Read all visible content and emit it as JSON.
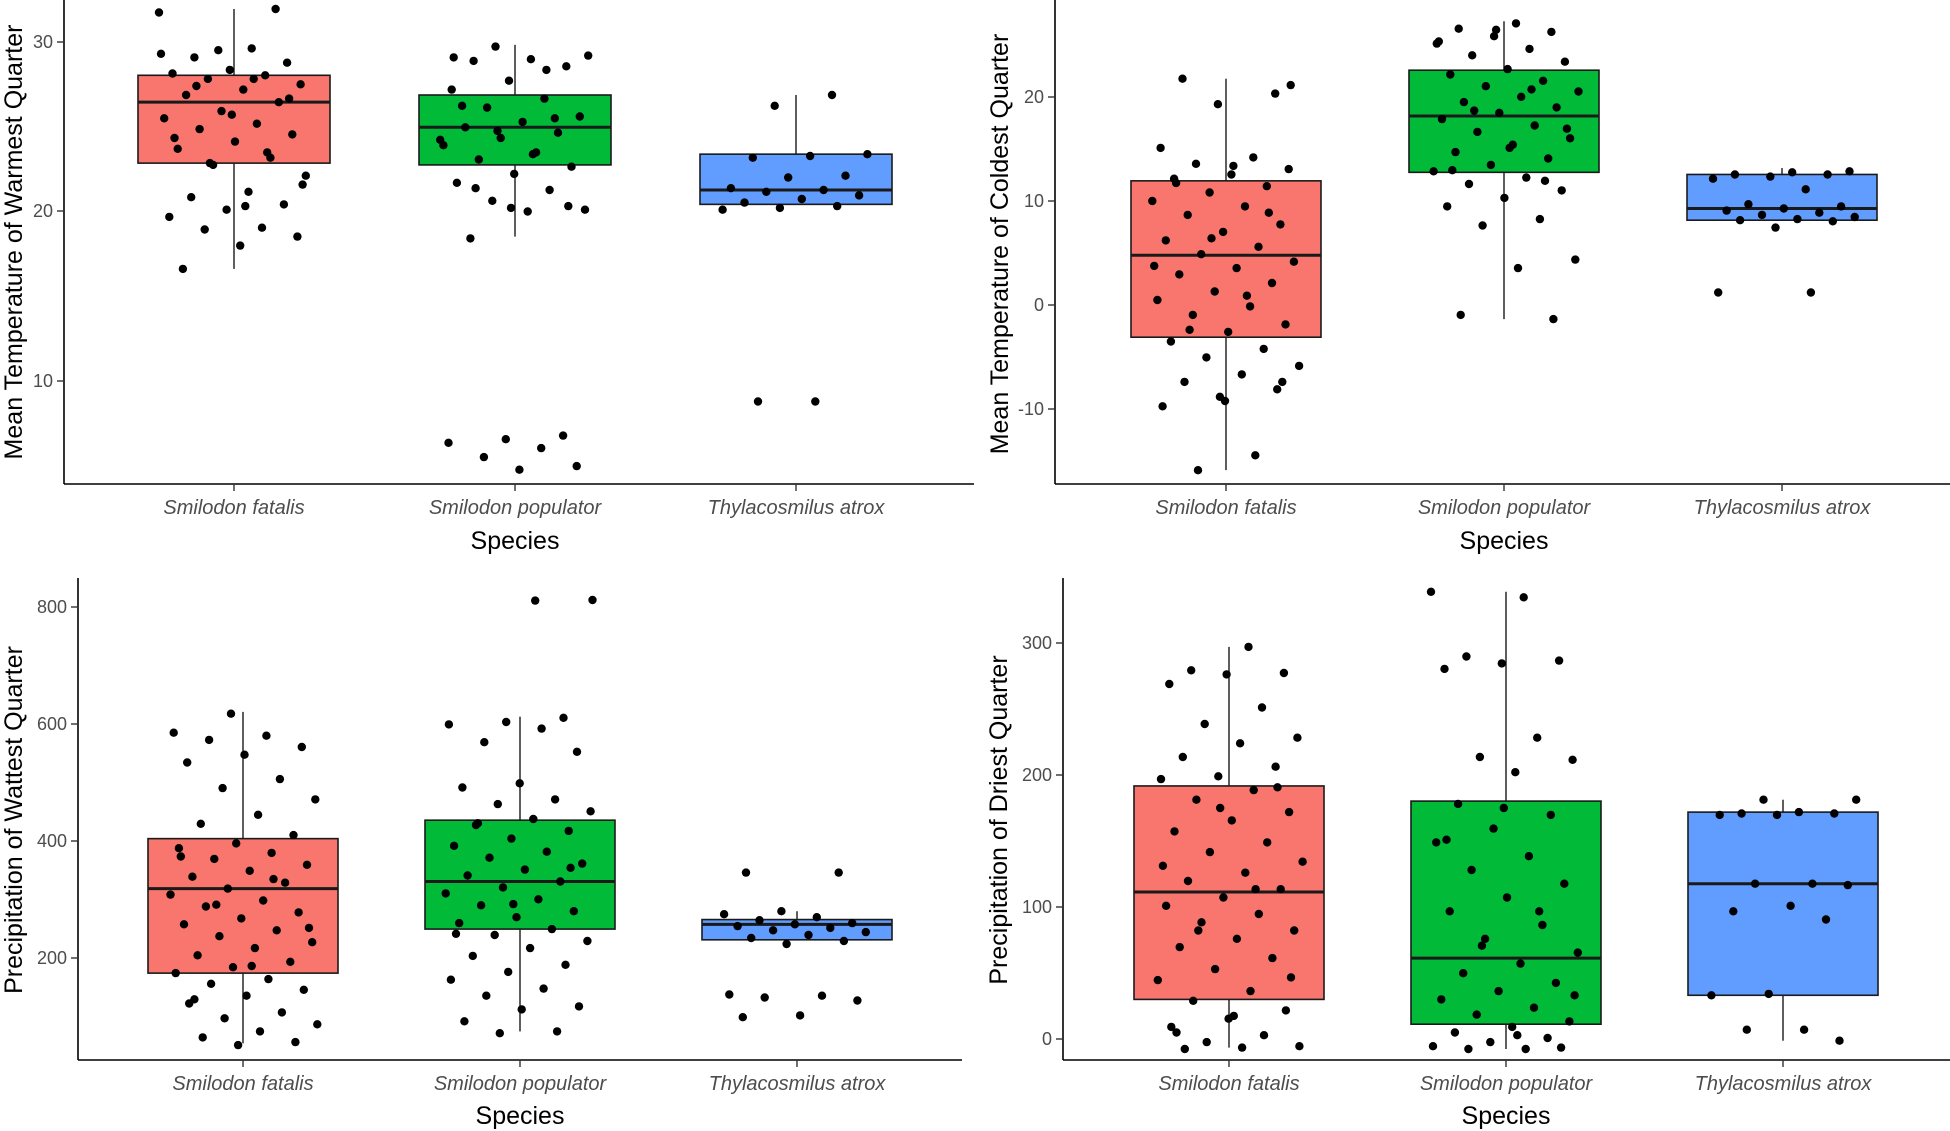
{
  "colors": {
    "Smilodon fatalis": "#F8766D",
    "Smilodon populator": "#00BA38",
    "Thylacosmilus atrox": "#619CFF"
  },
  "chart_data": [
    {
      "id": "warmest",
      "type": "box",
      "ylabel": "Mean Temperature of Warmest Quarter",
      "xlabel": "Species",
      "ylim": [
        4.5,
        31.5
      ],
      "yticks": [
        10,
        20,
        30
      ],
      "categories": [
        "Smilodon fatalis",
        "Smilodon populator",
        "Thylacosmilus atrox"
      ],
      "boxes": [
        {
          "q1": 22.4,
          "median": 25.8,
          "q3": 27.3,
          "lower": 16.5,
          "upper": 31.0
        },
        {
          "q1": 22.3,
          "median": 24.4,
          "q3": 26.2,
          "lower": 18.3,
          "upper": 29.0
        },
        {
          "q1": 20.1,
          "median": 20.9,
          "q3": 22.9,
          "lower": 20.1,
          "upper": 26.2
        }
      ],
      "points": [
        [
          30.8,
          28.8,
          28.3,
          28.0,
          27.6,
          27.4,
          27.3,
          27.1,
          26.8,
          26.5,
          26.2,
          25.8,
          25.3,
          24.9,
          24.6,
          24.3,
          24.0,
          23.6,
          23.2,
          22.7,
          22.3,
          21.7,
          20.8,
          20.5,
          20.1,
          19.8,
          19.4,
          18.8,
          18.7,
          18.3,
          17.8,
          16.5,
          31.0,
          28.7,
          28.5,
          27.1,
          26.7,
          26.0,
          25.1,
          23.8,
          23.0,
          22.4,
          21.2,
          20.0
        ],
        [
          28.9,
          28.4,
          28.2,
          28.1,
          27.8,
          27.0,
          26.5,
          26.0,
          25.5,
          25.0,
          24.7,
          24.4,
          24.1,
          23.8,
          23.4,
          23.0,
          22.6,
          22.2,
          21.8,
          21.3,
          20.9,
          20.3,
          19.8,
          19.7,
          18.2,
          7.2,
          7.0,
          6.8,
          6.5,
          6.0,
          5.5,
          5.3,
          25.6,
          24.9,
          24.2,
          23.7,
          22.9,
          21.0,
          20.0,
          19.9,
          28.3,
          27.6
        ],
        [
          26.2,
          25.6,
          22.9,
          22.8,
          22.7,
          21.7,
          21.6,
          21.0,
          20.9,
          20.8,
          20.6,
          20.4,
          20.2,
          20.0,
          19.9,
          19.8,
          9.1,
          9.1
        ]
      ]
    },
    {
      "id": "coldest",
      "type": "box",
      "ylabel": "Mean Temperature of Coldest Quarter",
      "xlabel": "Species",
      "ylim": [
        -16.5,
        29
      ],
      "yticks": [
        -10,
        0,
        10,
        20
      ],
      "categories": [
        "Smilodon fatalis",
        "Smilodon populator",
        "Thylacosmilus atrox"
      ],
      "boxes": [
        {
          "q1": -2.7,
          "median": 5.0,
          "q3": 12.0,
          "lower": -15.2,
          "upper": 21.6
        },
        {
          "q1": 12.8,
          "median": 18.1,
          "q3": 22.4,
          "lower": -1.0,
          "upper": 27.0
        },
        {
          "q1": 8.3,
          "median": 9.4,
          "q3": 12.6,
          "lower": 8.3,
          "upper": 13.2
        }
      ],
      "points": [
        [
          21.6,
          20.2,
          19.2,
          15.1,
          14.2,
          13.6,
          13.1,
          12.6,
          12.2,
          11.5,
          10.9,
          10.1,
          9.6,
          8.8,
          7.9,
          7.2,
          6.4,
          5.8,
          5.1,
          4.4,
          3.8,
          3.2,
          2.4,
          1.6,
          0.8,
          0.2,
          -0.6,
          -1.5,
          -2.2,
          -3.1,
          -3.8,
          -4.6,
          -5.4,
          -6.2,
          -6.9,
          -7.6,
          -8.3,
          -9.2,
          -13.8,
          -15.2,
          21.0,
          13.4,
          11.8,
          9.0,
          6.6,
          4.0,
          1.2,
          -2.0,
          -6.9,
          -8.7
        ],
        [
          26.8,
          26.3,
          26.0,
          25.6,
          24.9,
          24.4,
          23.8,
          23.2,
          22.5,
          22.0,
          21.4,
          20.9,
          20.4,
          19.9,
          19.4,
          18.9,
          18.4,
          17.8,
          17.2,
          16.6,
          16.0,
          15.4,
          14.7,
          14.1,
          13.5,
          12.9,
          12.3,
          11.7,
          11.1,
          10.4,
          9.6,
          8.4,
          7.8,
          4.6,
          3.8,
          -0.6,
          -1.0,
          26.2,
          25.1,
          20.6,
          18.6,
          16.9,
          15.1,
          13.0,
          12.0
        ],
        [
          12.9,
          12.8,
          12.6,
          12.6,
          12.4,
          12.2,
          11.2,
          9.8,
          9.6,
          9.4,
          9.2,
          9.0,
          8.8,
          8.6,
          8.4,
          8.3,
          8.2,
          7.6,
          1.5,
          1.5
        ]
      ]
    },
    {
      "id": "wettest",
      "type": "box",
      "ylabel": "Precipitation of Wattest Quarter",
      "xlabel": "Species",
      "ylim": [
        40,
        850
      ],
      "yticks": [
        200,
        400,
        600,
        800
      ],
      "categories": [
        "Smilodon fatalis",
        "Smilodon populator",
        "Thylacosmilus atrox"
      ],
      "boxes": [
        {
          "q1": 186,
          "median": 328,
          "q3": 412,
          "lower": 68,
          "upper": 625
        },
        {
          "q1": 260,
          "median": 340,
          "q3": 443,
          "lower": 88,
          "upper": 617
        },
        {
          "q1": 242,
          "median": 268,
          "q3": 276,
          "lower": 242,
          "upper": 290
        }
      ],
      "points": [
        [
          622,
          590,
          585,
          578,
          566,
          553,
          540,
          512,
          497,
          478,
          452,
          437,
          418,
          404,
          396,
          388,
          378,
          368,
          358,
          348,
          338,
          328,
          318,
          308,
          298,
          288,
          278,
          268,
          258,
          248,
          238,
          228,
          216,
          205,
          196,
          186,
          176,
          168,
          158,
          148,
          135,
          120,
          110,
          100,
          88,
          78,
          70,
          65,
          382,
          344,
          301,
          262,
          198,
          142
        ],
        [
          615,
          608,
          604,
          597,
          574,
          558,
          505,
          498,
          478,
          470,
          458,
          445,
          435,
          425,
          412,
          400,
          390,
          380,
          370,
          360,
          350,
          340,
          330,
          320,
          310,
          300,
          290,
          280,
          270,
          260,
          250,
          240,
          228,
          215,
          200,
          188,
          175,
          160,
          148,
          130,
          125,
          105,
          88,
          85,
          813,
          812,
          438,
          363,
          302,
          252
        ],
        [
          355,
          355,
          290,
          285,
          280,
          275,
          270,
          268,
          265,
          262,
          258,
          255,
          250,
          245,
          240,
          235,
          150,
          148,
          145,
          140,
          115,
          112
        ]
      ]
    },
    {
      "id": "driest",
      "type": "box",
      "ylabel": "Precipitation of Driest Quarter",
      "xlabel": "Species",
      "ylim": [
        -8,
        342
      ],
      "yticks": [
        0,
        100,
        200,
        300
      ],
      "categories": [
        "Smilodon fatalis",
        "Smilodon populator",
        "Thylacosmilus atrox"
      ],
      "boxes": [
        {
          "q1": 36,
          "median": 114,
          "q3": 191,
          "lower": 1,
          "upper": 292
        },
        {
          "q1": 18,
          "median": 66,
          "q3": 180,
          "lower": 0,
          "upper": 332
        },
        {
          "q1": 39,
          "median": 120,
          "q3": 172,
          "lower": 6,
          "upper": 181
        }
      ],
      "points": [
        [
          292,
          275,
          273,
          272,
          265,
          248,
          236,
          226,
          222,
          212,
          205,
          198,
          196,
          188,
          181,
          172,
          166,
          158,
          150,
          143,
          136,
          128,
          122,
          116,
          110,
          104,
          98,
          92,
          86,
          80,
          74,
          66,
          58,
          50,
          42,
          35,
          28,
          22,
          16,
          10,
          5,
          2,
          1,
          0,
          190,
          175,
          133,
          116,
          86,
          52,
          24,
          12
        ],
        [
          332,
          328,
          285,
          282,
          280,
          276,
          226,
          212,
          210,
          201,
          178,
          170,
          160,
          150,
          140,
          130,
          120,
          110,
          100,
          90,
          80,
          70,
          62,
          55,
          48,
          42,
          36,
          30,
          25,
          20,
          16,
          12,
          8,
          5,
          2,
          0,
          0,
          1,
          175,
          152,
          100,
          75,
          39,
          10
        ],
        [
          181,
          181,
          172,
          171,
          171,
          170,
          170,
          120,
          120,
          119,
          104,
          100,
          94,
          40,
          39,
          14,
          14,
          6
        ]
      ]
    }
  ],
  "panels": [
    {
      "ylabel": "Mean Temperature of Warmest Quarter",
      "xlabel": "Species",
      "yticks": [
        "10",
        "20",
        "30"
      ],
      "categories": [
        "Smilodon fatalis",
        "Smilodon populator",
        "Thylacosmilus atrox"
      ]
    },
    {
      "ylabel": "Mean Temperature of Coldest Quarter",
      "xlabel": "Species",
      "yticks": [
        "-10",
        "0",
        "10",
        "20"
      ],
      "categories": [
        "Smilodon fatalis",
        "Smilodon populator",
        "Thylacosmilus atrox"
      ]
    },
    {
      "ylabel": "Precipitation of Wattest Quarter",
      "xlabel": "Species",
      "yticks": [
        "200",
        "400",
        "600",
        "800"
      ],
      "categories": [
        "Smilodon fatalis",
        "Smilodon populator",
        "Thylacosmilus atrox"
      ]
    },
    {
      "ylabel": "Precipitation of Driest Quarter",
      "xlabel": "Species",
      "yticks": [
        "0",
        "100",
        "200",
        "300"
      ],
      "categories": [
        "Smilodon fatalis",
        "Smilodon populator",
        "Thylacosmilus atrox"
      ]
    }
  ]
}
